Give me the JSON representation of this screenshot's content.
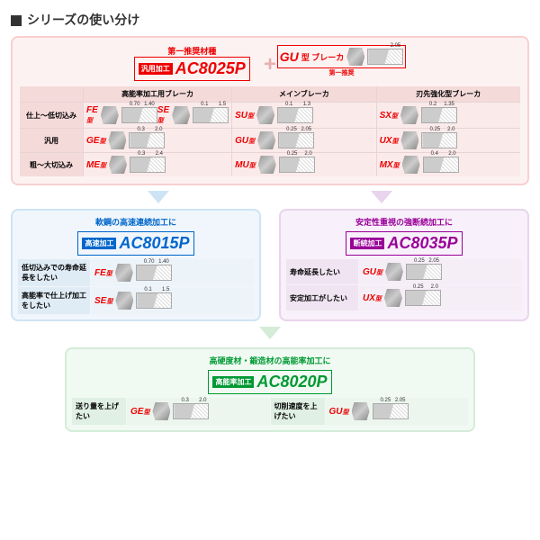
{
  "title": "シリーズの使い分け",
  "main": {
    "top_label_left": "第一推奨材種",
    "grade_prefix": "汎用加工",
    "grade_name": "AC8025P",
    "gu_label": "型 ブレーカ",
    "gu_name": "GU",
    "gu_tag": "第一推奨",
    "columns": [
      "",
      "高能率加工用ブレーカ",
      "メインブレーカ",
      "刃先強化型ブレーカ"
    ],
    "rows": [
      {
        "hdr": "仕上～低切込み",
        "cells": [
          {
            "b": "FE",
            "a1": "0.70",
            "a2": "1.40"
          },
          {
            "b": "SE",
            "a1": "0.1",
            "a2": "1.5"
          },
          {
            "b": "SU",
            "a1": "0.1",
            "a2": "1.3"
          },
          {
            "b": "SX",
            "a1": "0.2",
            "a2": "1.35"
          }
        ]
      },
      {
        "hdr": "汎用",
        "cells": [
          {
            "b": "GE",
            "a1": "0.3",
            "a2": "2.0"
          },
          {
            "b": "",
            "a1": "",
            "a2": ""
          },
          {
            "b": "GU",
            "a1": "0.25",
            "a2": "2.05"
          },
          {
            "b": "UX",
            "a1": "0.25",
            "a2": "2.0"
          }
        ]
      },
      {
        "hdr": "粗～大切込み",
        "cells": [
          {
            "b": "ME",
            "a1": "0.3",
            "a2": "2.4"
          },
          {
            "b": "",
            "a1": "",
            "a2": ""
          },
          {
            "b": "MU",
            "a1": "0.25",
            "a2": "2.0"
          },
          {
            "b": "MX",
            "a1": "0.4",
            "a2": "2.0"
          }
        ]
      }
    ]
  },
  "blue": {
    "caption": "軟鋼の高速連続加工に",
    "prefix": "高速加工",
    "name": "AC8015P",
    "rows": [
      {
        "hdr": "低切込みでの寿命延長をしたい",
        "b": "FE",
        "a1": "0.70",
        "a2": "1.40"
      },
      {
        "hdr": "高能率で仕上げ加工をしたい",
        "b": "SE",
        "a1": "0.1",
        "a2": "1.5"
      }
    ]
  },
  "purple": {
    "caption": "安定性重視の強断続加工に",
    "prefix": "断続加工",
    "name": "AC8035P",
    "rows": [
      {
        "hdr": "寿命延長したい",
        "b": "GU",
        "a1": "0.25",
        "a2": "2.05"
      },
      {
        "hdr": "安定加工がしたい",
        "b": "UX",
        "a1": "0.25",
        "a2": "2.0"
      }
    ]
  },
  "green": {
    "caption": "高硬度材・鍛造材の高能率加工に",
    "prefix": "高能率加工",
    "name": "AC8020P",
    "rows": [
      {
        "hdr": "送り量を上げたい",
        "b": "GE",
        "a1": "0.3",
        "a2": "2.0"
      },
      {
        "hdr": "切削速度を上げたい",
        "b": "GU",
        "a1": "0.25",
        "a2": "2.05"
      }
    ]
  },
  "colors": {
    "red": "#e00",
    "blue": "#06c",
    "purple": "#909",
    "green": "#093"
  }
}
